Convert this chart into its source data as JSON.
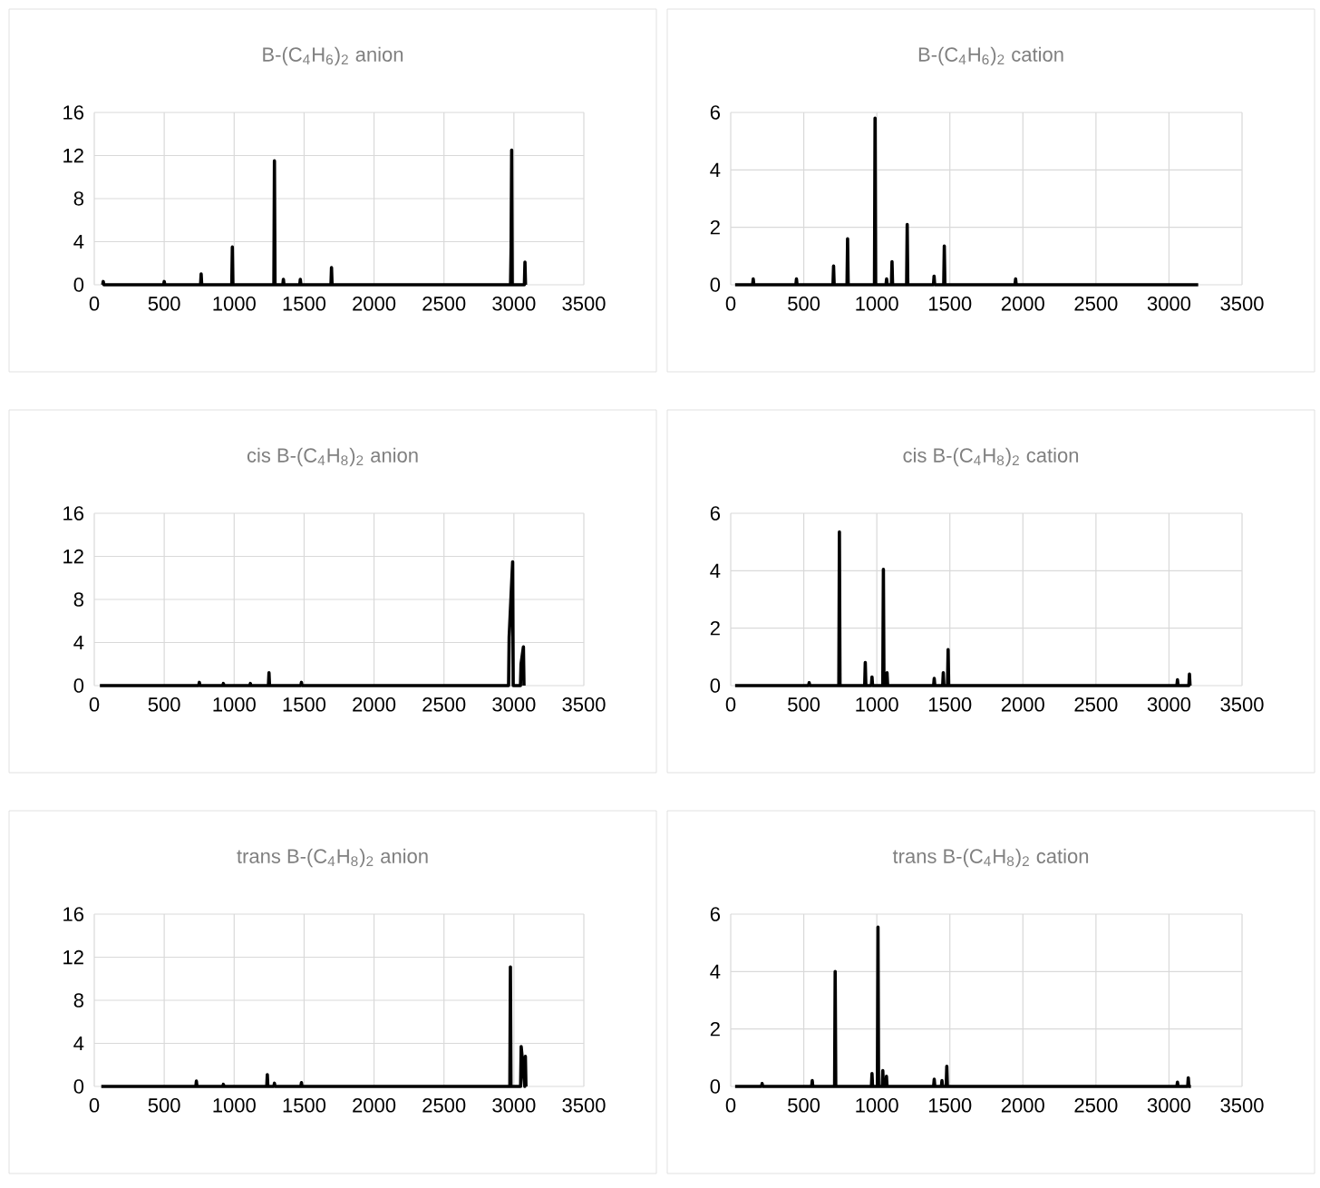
{
  "chart_data": [
    {
      "type": "line",
      "title": "B-(C$_{4}$H$_{6}$)$_{2}$ anion",
      "color": "#000000",
      "xlim": [
        0,
        3500
      ],
      "xticks": [
        0,
        500,
        1000,
        1500,
        2000,
        2500,
        3000,
        3500
      ],
      "ylim": [
        0,
        16
      ],
      "yticks": [
        0,
        4,
        8,
        12,
        16
      ],
      "grid": true,
      "x": [
        60,
        64,
        68,
        496,
        500,
        504,
        760,
        764,
        768,
        983,
        987,
        991,
        1284,
        1288,
        1292,
        1348,
        1352,
        1356,
        1469,
        1473,
        1477,
        1692,
        1696,
        1700,
        2976,
        2980,
        2984,
        2988,
        3075,
        3079,
        3083
      ],
      "values": [
        0,
        0.3,
        0,
        0,
        0.3,
        0,
        0,
        1,
        0,
        0,
        3.5,
        0,
        0,
        11.5,
        0,
        0,
        0.5,
        0,
        0,
        0.5,
        0,
        0,
        1.6,
        0,
        0,
        3.5,
        12.5,
        0,
        0,
        2.1,
        0
      ]
    },
    {
      "type": "line",
      "title": "B-(C$_{4}$H$_{6}$)$_{2}$ cation",
      "color": "#000000",
      "xlim": [
        0,
        3500
      ],
      "xticks": [
        0,
        500,
        1000,
        1500,
        2000,
        2500,
        3000,
        3500
      ],
      "ylim": [
        0,
        6
      ],
      "yticks": [
        0,
        2,
        4,
        6
      ],
      "grid": true,
      "x": [
        30,
        150,
        154,
        158,
        446,
        450,
        454,
        700,
        704,
        708,
        796,
        800,
        804,
        984,
        988,
        992,
        1063,
        1067,
        1071,
        1100,
        1104,
        1108,
        1204,
        1208,
        1212,
        1388,
        1392,
        1396,
        1458,
        1462,
        1466,
        1946,
        1950,
        1954,
        3200
      ],
      "values": [
        0,
        0,
        0.2,
        0,
        0,
        0.2,
        0,
        0,
        0.65,
        0,
        0,
        1.6,
        0,
        0,
        5.8,
        0,
        0,
        0.2,
        0,
        0,
        0.8,
        0,
        0,
        2.1,
        0,
        0,
        0.3,
        0,
        0,
        1.35,
        0,
        0,
        0.2,
        0,
        0
      ]
    },
    {
      "type": "line",
      "title": "cis B-(C$_{4}$H$_{8}$)$_{2}$ anion",
      "color": "#000000",
      "xlim": [
        0,
        3500
      ],
      "xticks": [
        0,
        500,
        1000,
        1500,
        2000,
        2500,
        3000,
        3500
      ],
      "ylim": [
        0,
        16
      ],
      "yticks": [
        0,
        4,
        8,
        12,
        16
      ],
      "grid": true,
      "x": [
        40,
        747,
        751,
        755,
        919,
        923,
        927,
        1112,
        1116,
        1120,
        1245,
        1249,
        1253,
        1477,
        1481,
        1485,
        2962,
        2966,
        2991,
        2995,
        3047,
        3051,
        3068,
        3072
      ],
      "values": [
        0,
        0,
        0.3,
        0,
        0,
        0.2,
        0,
        0,
        0.2,
        0,
        0,
        1.2,
        0,
        0,
        0.3,
        0,
        0,
        4.5,
        11.5,
        0,
        0,
        2,
        3.6,
        0
      ]
    },
    {
      "type": "line",
      "title": "cis B-(C$_{4}$H$_{8}$)$_{2}$ cation",
      "color": "#000000",
      "xlim": [
        0,
        3500
      ],
      "xticks": [
        0,
        500,
        1000,
        1500,
        2000,
        2500,
        3000,
        3500
      ],
      "ylim": [
        0,
        6
      ],
      "yticks": [
        0,
        2,
        4,
        6
      ],
      "grid": true,
      "x": [
        30,
        533,
        537,
        541,
        740,
        744,
        748,
        917,
        921,
        925,
        963,
        967,
        971,
        1041,
        1045,
        1049,
        1066,
        1070,
        1074,
        1389,
        1393,
        1397,
        1451,
        1455,
        1459,
        1484,
        1488,
        1492,
        3054,
        3058,
        3062,
        3136,
        3140,
        3144
      ],
      "values": [
        0,
        0,
        0.1,
        0,
        0,
        5.35,
        0,
        0,
        0.8,
        0,
        0,
        0.3,
        0,
        0,
        4.05,
        0,
        0,
        0.45,
        0,
        0,
        0.25,
        0,
        0,
        0.45,
        0,
        0,
        1.25,
        0,
        0,
        0.2,
        0,
        0,
        0.4,
        0
      ]
    },
    {
      "type": "line",
      "title": "trans B-(C$_{4}$H$_{8}$)$_{2}$ anion",
      "color": "#000000",
      "xlim": [
        0,
        3500
      ],
      "xticks": [
        0,
        500,
        1000,
        1500,
        2000,
        2500,
        3000,
        3500
      ],
      "ylim": [
        0,
        16
      ],
      "yticks": [
        0,
        4,
        8,
        12,
        16
      ],
      "grid": true,
      "x": [
        50,
        726,
        730,
        734,
        919,
        923,
        927,
        1233,
        1237,
        1241,
        1284,
        1288,
        1292,
        1477,
        1481,
        1485,
        2971,
        2975,
        2979,
        3048,
        3052,
        3078,
        3082,
        3086
      ],
      "values": [
        0,
        0,
        0.5,
        0,
        0,
        0.2,
        0,
        0,
        1.1,
        0,
        0,
        0.3,
        0,
        0,
        0.35,
        0,
        0,
        11.1,
        0,
        0,
        3.7,
        0,
        2.8,
        0
      ]
    },
    {
      "type": "line",
      "title": "trans B-(C$_{4}$H$_{8}$)$_{2}$ cation",
      "color": "#000000",
      "xlim": [
        0,
        3500
      ],
      "xticks": [
        0,
        500,
        1000,
        1500,
        2000,
        2500,
        3000,
        3500
      ],
      "ylim": [
        0,
        6
      ],
      "yticks": [
        0,
        2,
        4,
        6
      ],
      "grid": true,
      "x": [
        30,
        211,
        215,
        219,
        554,
        558,
        562,
        711,
        715,
        719,
        963,
        967,
        971,
        1004,
        1008,
        1012,
        1037,
        1041,
        1045,
        1062,
        1066,
        1070,
        1389,
        1393,
        1397,
        1442,
        1446,
        1450,
        1475,
        1479,
        1483,
        3054,
        3058,
        3062,
        3128,
        3132,
        3136,
        3150
      ],
      "values": [
        0,
        0,
        0.1,
        0,
        0,
        0.2,
        0,
        0,
        4,
        0,
        0,
        0.45,
        0,
        0,
        5.55,
        0,
        0,
        0.55,
        0,
        0,
        0.35,
        0,
        0,
        0.25,
        0,
        0,
        0.2,
        0,
        0,
        0.7,
        0,
        0,
        0.15,
        0,
        0,
        0.3,
        0,
        0
      ]
    }
  ]
}
